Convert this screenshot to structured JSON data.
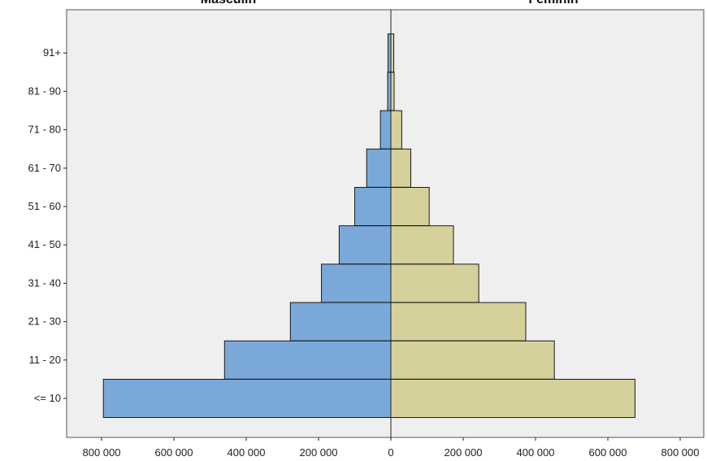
{
  "chart_data": {
    "type": "bar",
    "orientation": "horizontal-diverging",
    "categories": [
      "<= 10",
      "11 - 20",
      "21 - 30",
      "31 - 40",
      "41 - 50",
      "51 - 60",
      "61 - 70",
      "71 - 80",
      "81 - 90",
      "91+"
    ],
    "series": [
      {
        "name": "Masculin",
        "values": [
          795000,
          460000,
          278000,
          192000,
          143000,
          100000,
          67000,
          29000,
          9000,
          8000
        ]
      },
      {
        "name": "Feminin",
        "values": [
          675000,
          452000,
          373000,
          243000,
          173000,
          106000,
          55000,
          30000,
          9000,
          8000
        ]
      }
    ],
    "xlim": [
      -800000,
      800000
    ],
    "xticks": [
      -800000,
      -600000,
      -400000,
      -200000,
      0,
      200000,
      400000,
      600000,
      800000
    ],
    "xtick_labels": [
      "800 000",
      "600 000",
      "400 000",
      "200 000",
      "0",
      "200 000",
      "400 000",
      "600 000",
      "800 000"
    ],
    "grid": false,
    "colors": {
      "left": "#7aa9d9",
      "right": "#d6d19a",
      "background": "#efefef",
      "edge": "#1a1a1a"
    }
  }
}
